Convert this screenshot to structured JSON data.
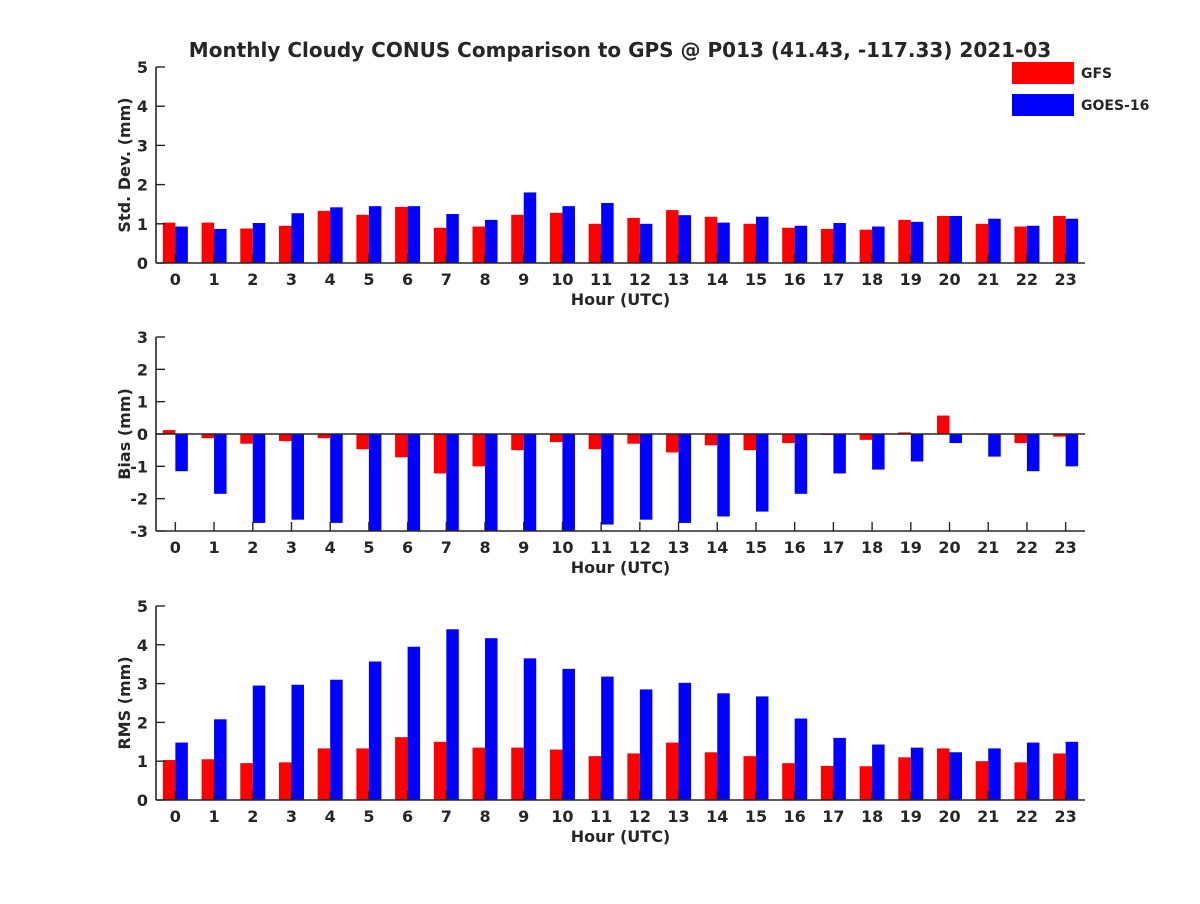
{
  "title": "Monthly Cloudy CONUS Comparison to GPS @ P013 (41.43, -117.33) 2021-03",
  "legend": {
    "position": "top-right",
    "entries": [
      {
        "name": "GFS",
        "color": "#ff0000"
      },
      {
        "name": "GOES-16",
        "color": "#0000ff"
      }
    ]
  },
  "chart_data": [
    {
      "type": "bar",
      "xlabel": "Hour (UTC)",
      "ylabel": "Std. Dev. (mm)",
      "ylim": [
        0,
        5
      ],
      "yticks": [
        0,
        1,
        2,
        3,
        4,
        5
      ],
      "categories": [
        "0",
        "1",
        "2",
        "3",
        "4",
        "5",
        "6",
        "7",
        "8",
        "9",
        "10",
        "11",
        "12",
        "13",
        "14",
        "15",
        "16",
        "17",
        "18",
        "19",
        "20",
        "21",
        "22",
        "23"
      ],
      "series": [
        {
          "name": "GFS",
          "color": "#ff0000",
          "values": [
            1.03,
            1.03,
            0.88,
            0.95,
            1.33,
            1.23,
            1.43,
            0.9,
            0.93,
            1.23,
            1.28,
            1.0,
            1.15,
            1.35,
            1.18,
            1.0,
            0.9,
            0.87,
            0.85,
            1.1,
            1.2,
            1.0,
            0.93,
            1.2
          ]
        },
        {
          "name": "GOES-16",
          "color": "#0000ff",
          "values": [
            0.93,
            0.87,
            1.02,
            1.27,
            1.42,
            1.45,
            1.45,
            1.25,
            1.1,
            1.8,
            1.45,
            1.53,
            1.0,
            1.22,
            1.03,
            1.18,
            0.95,
            1.02,
            0.93,
            1.05,
            1.2,
            1.13,
            0.95,
            1.13
          ]
        }
      ]
    },
    {
      "type": "bar",
      "xlabel": "Hour (UTC)",
      "ylabel": "Bias (mm)",
      "ylim": [
        -3,
        3
      ],
      "yticks": [
        -3,
        -2,
        -1,
        0,
        1,
        2,
        3
      ],
      "categories": [
        "0",
        "1",
        "2",
        "3",
        "4",
        "5",
        "6",
        "7",
        "8",
        "9",
        "10",
        "11",
        "12",
        "13",
        "14",
        "15",
        "16",
        "17",
        "18",
        "19",
        "20",
        "21",
        "22",
        "23"
      ],
      "series": [
        {
          "name": "GFS",
          "color": "#ff0000",
          "values": [
            0.12,
            -0.13,
            -0.3,
            -0.22,
            -0.13,
            -0.47,
            -0.72,
            -1.22,
            -1.0,
            -0.5,
            -0.25,
            -0.47,
            -0.3,
            -0.57,
            -0.35,
            -0.5,
            -0.28,
            -0.03,
            -0.18,
            0.05,
            0.57,
            -0.02,
            -0.28,
            -0.08
          ]
        },
        {
          "name": "GOES-16",
          "color": "#0000ff",
          "values": [
            -1.15,
            -1.85,
            -2.75,
            -2.65,
            -2.75,
            -3.0,
            -3.0,
            -3.0,
            -3.0,
            -3.0,
            -3.0,
            -2.8,
            -2.65,
            -2.75,
            -2.55,
            -2.4,
            -1.85,
            -1.22,
            -1.1,
            -0.85,
            -0.28,
            -0.7,
            -1.15,
            -1.0
          ]
        }
      ]
    },
    {
      "type": "bar",
      "xlabel": "Hour (UTC)",
      "ylabel": "RMS (mm)",
      "ylim": [
        0,
        5
      ],
      "yticks": [
        0,
        1,
        2,
        3,
        4,
        5
      ],
      "categories": [
        "0",
        "1",
        "2",
        "3",
        "4",
        "5",
        "6",
        "7",
        "8",
        "9",
        "10",
        "11",
        "12",
        "13",
        "14",
        "15",
        "16",
        "17",
        "18",
        "19",
        "20",
        "21",
        "22",
        "23"
      ],
      "series": [
        {
          "name": "GFS",
          "color": "#ff0000",
          "values": [
            1.03,
            1.05,
            0.95,
            0.97,
            1.33,
            1.33,
            1.62,
            1.5,
            1.35,
            1.35,
            1.3,
            1.13,
            1.2,
            1.48,
            1.23,
            1.13,
            0.95,
            0.88,
            0.87,
            1.1,
            1.33,
            1.0,
            0.97,
            1.2
          ]
        },
        {
          "name": "GOES-16",
          "color": "#0000ff",
          "values": [
            1.48,
            2.08,
            2.95,
            2.97,
            3.1,
            3.57,
            3.95,
            4.4,
            4.17,
            3.65,
            3.38,
            3.18,
            2.85,
            3.02,
            2.75,
            2.67,
            2.1,
            1.6,
            1.43,
            1.35,
            1.23,
            1.33,
            1.48,
            1.5
          ]
        }
      ]
    }
  ]
}
